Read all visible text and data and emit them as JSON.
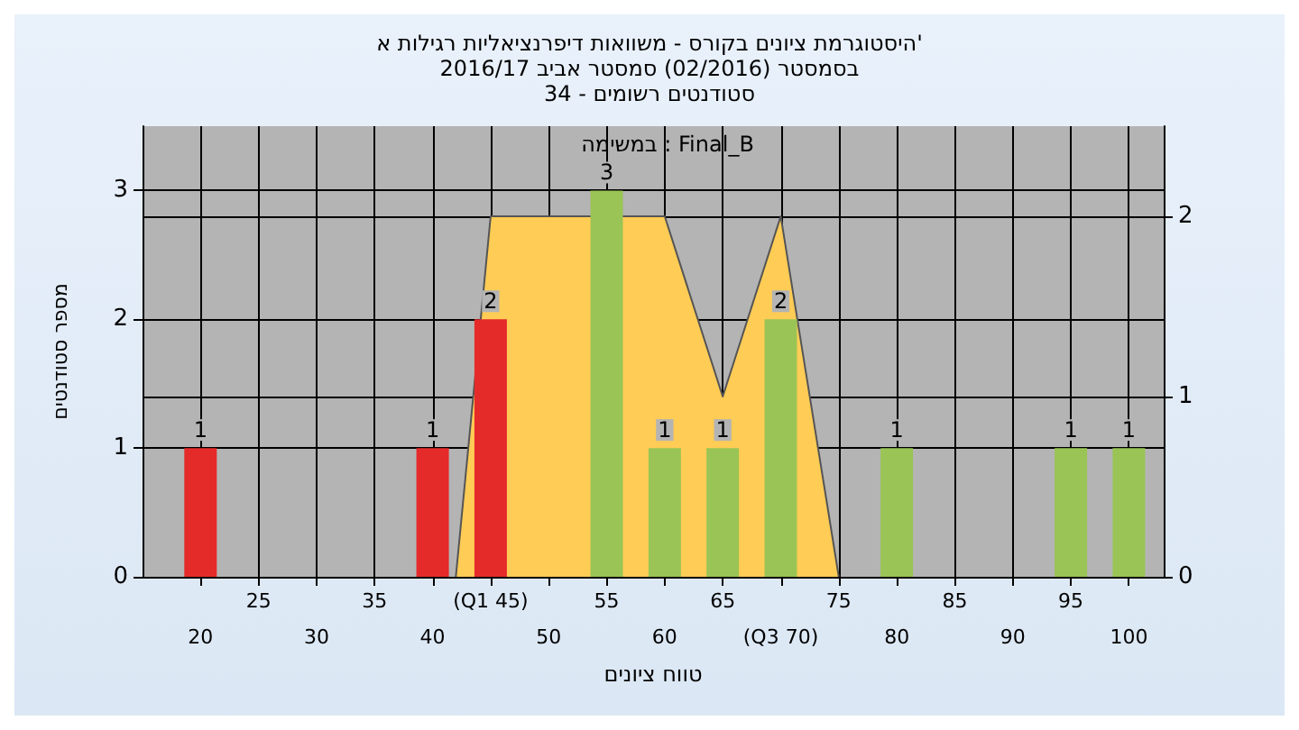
{
  "chart_data": {
    "type": "bar",
    "title": "היסטוגרמת ציונים בקורס - משוואות דיפרנציאליות רגילות א'",
    "subtitle": "בסמסטר (02/2016) סמסטר אביב 2016/17\nסטודנטים רשומים - 34",
    "xlabel": "טווח ציונים",
    "ylabel": "מספר סטודנטים",
    "annotations": [
      "במשימה : Final_B"
    ],
    "x": [
      20,
      40,
      45,
      55,
      60,
      65,
      70,
      80,
      95,
      100
    ],
    "series": [
      {
        "values": [
          1,
          1,
          2,
          3,
          1,
          1,
          2,
          1,
          1,
          1
        ],
        "value_labels": [
          "1",
          "1",
          "2",
          "3",
          "1",
          "1",
          "2",
          "1",
          "1",
          "1"
        ],
        "colors": [
          "#e52a2a",
          "#e52a2a",
          "#e52a2a",
          "#9ac455",
          "#9ac455",
          "#9ac455",
          "#9ac455",
          "#9ac455",
          "#9ac455",
          "#9ac455"
        ]
      },
      {
        "type": "area",
        "axis": "y2",
        "color": "#ffcc55",
        "x": [
          42,
          45,
          60,
          65,
          70,
          75
        ],
        "values": [
          0,
          2,
          2,
          1,
          2,
          0
        ]
      }
    ],
    "xlim": [
      15,
      103
    ],
    "xticks": [
      20,
      30,
      40,
      50,
      60,
      {
        "value": 70,
        "label": "(Q3 70)"
      },
      80,
      90,
      100
    ],
    "x2lim": [
      15,
      103
    ],
    "x2ticks": [
      25,
      35,
      {
        "value": 45,
        "label": "(Q1 45)"
      },
      55,
      65,
      75,
      85,
      95
    ],
    "ylim": [
      0,
      3.5
    ],
    "yticks": [
      0,
      1,
      2,
      3
    ],
    "y2lim": [
      0,
      2.5
    ],
    "y2ticks": [
      0,
      1,
      2
    ],
    "grid": true
  }
}
